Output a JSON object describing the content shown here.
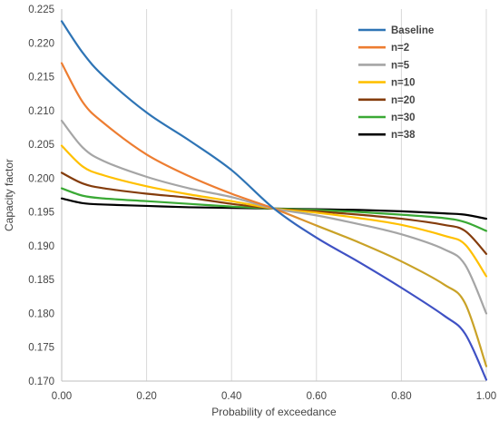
{
  "chart_data": {
    "type": "line",
    "title": "",
    "xlabel": "Probability of exceedance",
    "ylabel": "Capacity factor",
    "xlim": [
      0,
      1
    ],
    "ylim": [
      0.17,
      0.225
    ],
    "x_ticks": [
      "0.00",
      "0.20",
      "0.40",
      "0.60",
      "0.80",
      "1.00"
    ],
    "y_ticks": [
      "0.225",
      "0.220",
      "0.215",
      "0.210",
      "0.205",
      "0.200",
      "0.195",
      "0.190",
      "0.185",
      "0.180",
      "0.175",
      "0.170"
    ],
    "grid": "vertical",
    "legend_position": "top-right",
    "x": [
      0.0,
      0.05,
      0.1,
      0.2,
      0.3,
      0.4,
      0.5,
      0.6,
      0.7,
      0.8,
      0.9,
      0.95,
      1.0
    ],
    "series": [
      {
        "name": "Baseline",
        "color": "#2e74b5",
        "colors": [
          "#2e74b5",
          "#3f51c4"
        ],
        "values": [
          0.2232,
          0.2185,
          0.215,
          0.2097,
          0.2056,
          0.2012,
          0.1955,
          0.1912,
          0.1876,
          0.1838,
          0.1797,
          0.177,
          0.1702
        ]
      },
      {
        "name": "n=2",
        "color": "#ed7d31",
        "colors": [
          "#ed7d31",
          "#c9a227"
        ],
        "values": [
          0.217,
          0.2112,
          0.2081,
          0.2035,
          0.2003,
          0.1977,
          0.1955,
          0.193,
          0.1905,
          0.1877,
          0.1843,
          0.1815,
          0.1722
        ]
      },
      {
        "name": "n=5",
        "color": "#a5a5a5",
        "colors": [
          "#a5a5a5",
          "#a5a5a5"
        ],
        "values": [
          0.2085,
          0.2045,
          0.2025,
          0.2002,
          0.1985,
          0.1972,
          0.1955,
          0.1945,
          0.1932,
          0.1917,
          0.1895,
          0.1872,
          0.18
        ]
      },
      {
        "name": "n=10",
        "color": "#ffc000",
        "colors": [
          "#ffc000",
          "#ffc000"
        ],
        "values": [
          0.2048,
          0.2017,
          0.2004,
          0.1988,
          0.1976,
          0.1966,
          0.1955,
          0.1949,
          0.1941,
          0.1931,
          0.1915,
          0.1902,
          0.1855
        ]
      },
      {
        "name": "n=20",
        "color": "#843c0c",
        "colors": [
          "#843c0c",
          "#843c0c"
        ],
        "values": [
          0.2008,
          0.1992,
          0.1985,
          0.1977,
          0.1971,
          0.1962,
          0.1955,
          0.1951,
          0.1946,
          0.194,
          0.1931,
          0.1922,
          0.1888
        ]
      },
      {
        "name": "n=30",
        "color": "#3aa935",
        "colors": [
          "#3aa935",
          "#3aa935"
        ],
        "values": [
          0.1985,
          0.1974,
          0.197,
          0.1966,
          0.1962,
          0.1958,
          0.1955,
          0.1953,
          0.195,
          0.1946,
          0.1941,
          0.1935,
          0.1922
        ]
      },
      {
        "name": "n=38",
        "color": "#000000",
        "colors": [
          "#000000",
          "#000000"
        ],
        "values": [
          0.197,
          0.1963,
          0.1961,
          0.1959,
          0.1957,
          0.1956,
          0.1955,
          0.1954,
          0.1953,
          0.1951,
          0.1948,
          0.1946,
          0.194
        ]
      }
    ]
  }
}
